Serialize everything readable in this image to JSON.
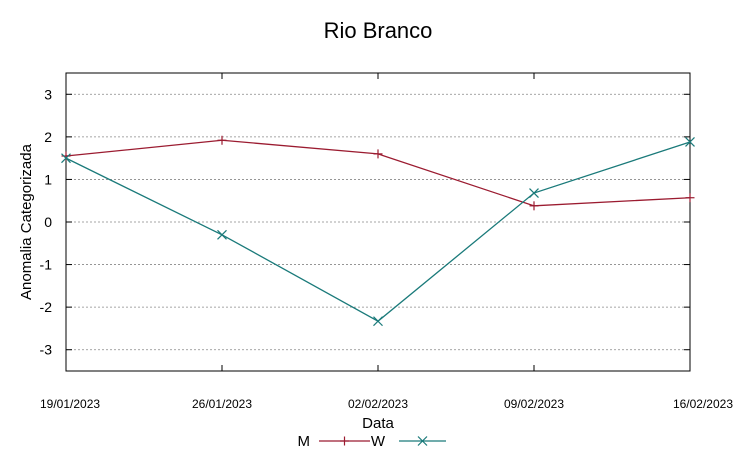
{
  "chart_data": {
    "type": "line",
    "title": "Rio Branco",
    "xlabel": "Data",
    "ylabel": "Anomalia Categorizada",
    "categories": [
      "19/01/2023",
      "26/01/2023",
      "02/02/2023",
      "09/02/2023",
      "16/02/2023"
    ],
    "yticks": [
      "3",
      "2",
      "1",
      "0",
      "-1",
      "-2",
      "-3"
    ],
    "ylim": [
      -3.5,
      3.5
    ],
    "grid": true,
    "legend": "bottom",
    "series": [
      {
        "name": "M",
        "color": "#9b1b30",
        "marker": "plus",
        "values": [
          1.55,
          1.92,
          1.6,
          0.38,
          0.57
        ]
      },
      {
        "name": "W",
        "color": "#1a7a7a",
        "marker": "cross",
        "values": [
          1.5,
          -0.3,
          -2.33,
          0.68,
          1.88
        ]
      }
    ]
  }
}
